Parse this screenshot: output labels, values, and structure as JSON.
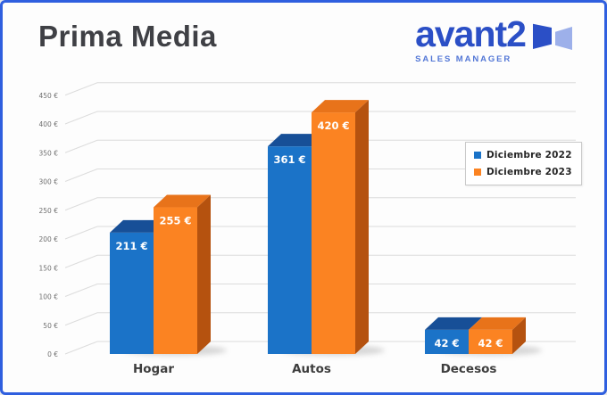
{
  "header": {
    "title": "Prima Media",
    "logo": {
      "brand": "avant2",
      "tagline": "SALES MANAGER"
    }
  },
  "colors": {
    "border": "#2F5FDF",
    "background": "#FDFDFD",
    "title": "#3F4045",
    "brand_blue": "#2B4FC6",
    "tagline_blue": "#5377D6",
    "logo_panel_light": "#9DB0EA",
    "grid": "#DCDCDC",
    "tick_text": "#707070",
    "category_text": "#3D3D3D",
    "value_label_text": "#FFFFFF",
    "bar_shadow": "#9A9A9A"
  },
  "chart_data": {
    "type": "bar",
    "style": "3d-clustered-column",
    "title": "Prima Media",
    "categories": [
      "Hogar",
      "Autos",
      "Decesos"
    ],
    "series": [
      {
        "name": "Diciembre 2022",
        "values": [
          211,
          361,
          42
        ],
        "labels": [
          "211 €",
          "361 €",
          "42 €"
        ],
        "color": "#1B73C8",
        "color_top": "#174F97",
        "color_side": "#10497F"
      },
      {
        "name": "Diciembre 2023",
        "values": [
          255,
          420,
          42
        ],
        "labels": [
          "255 €",
          "420 €",
          "42 €"
        ],
        "color": "#FB8322",
        "color_top": "#E8731A",
        "color_side": "#B5520F"
      }
    ],
    "value_suffix": " €",
    "ylim": [
      0,
      450
    ],
    "y_ticks": [
      0,
      50,
      100,
      150,
      200,
      250,
      300,
      350,
      400,
      450
    ],
    "y_tick_labels": [
      "0 €",
      "50 €",
      "100 €",
      "150 €",
      "200 €",
      "250 €",
      "300 €",
      "350 €",
      "400 €",
      "450 €"
    ],
    "grid": true,
    "legend_position": "right"
  }
}
